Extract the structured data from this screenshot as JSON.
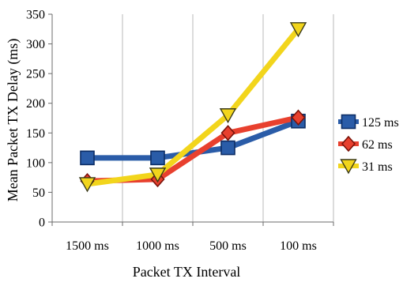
{
  "chart_data": {
    "type": "line",
    "title": "",
    "xlabel": "Packet TX Interval",
    "ylabel": "Mean Packet TX Delay (ms)",
    "categories": [
      "1500 ms",
      "1000 ms",
      "500 ms",
      "100 ms"
    ],
    "ylim": [
      0,
      350
    ],
    "yticks": [
      0,
      50,
      100,
      150,
      200,
      250,
      300,
      350
    ],
    "grid": "vertical",
    "legend": "right",
    "series": [
      {
        "name": "125 ms",
        "values": [
          108,
          108,
          125,
          170
        ],
        "color": "#2a5ca8",
        "marker": "square"
      },
      {
        "name": "62 ms",
        "values": [
          69,
          72,
          150,
          176
        ],
        "color": "#e8402e",
        "marker": "diamond"
      },
      {
        "name": "31 ms",
        "values": [
          64,
          80,
          180,
          325
        ],
        "color": "#f2d51c",
        "marker": "triangle-down"
      }
    ]
  }
}
